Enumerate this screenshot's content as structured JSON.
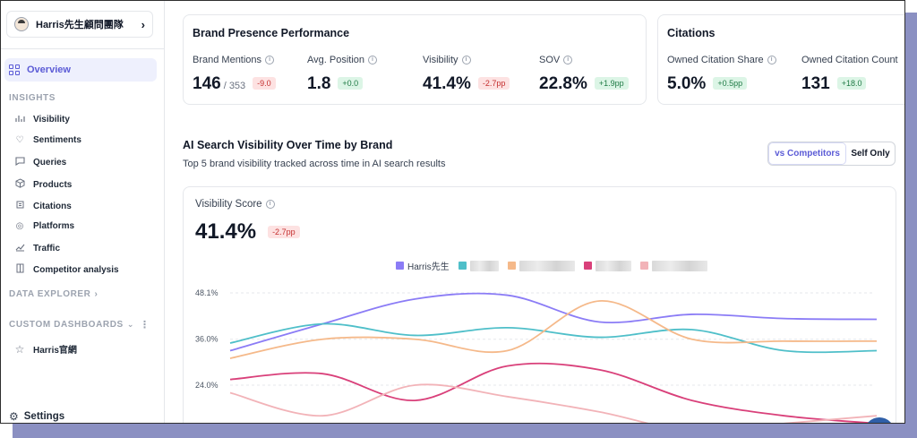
{
  "sidebar": {
    "workspace_name": "Harris先生顧問團隊",
    "overview_label": "Overview",
    "insights_label": "INSIGHTS",
    "insights_items": [
      {
        "label": "Visibility",
        "icon": "bar-chart-icon"
      },
      {
        "label": "Sentiments",
        "icon": "heart-icon"
      },
      {
        "label": "Queries",
        "icon": "chat-icon"
      },
      {
        "label": "Products",
        "icon": "box-icon"
      },
      {
        "label": "Citations",
        "icon": "citation-icon"
      },
      {
        "label": "Platforms",
        "icon": "target-icon"
      },
      {
        "label": "Traffic",
        "icon": "trend-icon"
      },
      {
        "label": "Competitor analysis",
        "icon": "compare-icon"
      }
    ],
    "data_explorer_label": "DATA EXPLORER",
    "custom_dashboards_label": "CUSTOM DASHBOARDS",
    "dashboards": [
      {
        "label": "Harris官網",
        "icon": "star-icon"
      }
    ],
    "settings_label": "Settings"
  },
  "brand_presence": {
    "title": "Brand Presence Performance",
    "metrics": [
      {
        "label": "Brand Mentions",
        "value": "146",
        "sub": "/ 353",
        "delta": "-9.0",
        "trend": "down"
      },
      {
        "label": "Avg. Position",
        "value": "1.8",
        "sub": "",
        "delta": "+0.0",
        "trend": "up"
      },
      {
        "label": "Visibility",
        "value": "41.4%",
        "sub": "",
        "delta": "-2.7pp",
        "trend": "down"
      },
      {
        "label": "SOV",
        "value": "22.8%",
        "sub": "",
        "delta": "+1.9pp",
        "trend": "up"
      }
    ]
  },
  "citations": {
    "title": "Citations",
    "metrics": [
      {
        "label": "Owned Citation Share",
        "value": "5.0%",
        "delta": "+0.5pp",
        "trend": "up"
      },
      {
        "label": "Owned Citation Count",
        "value": "131",
        "delta": "+18.0",
        "trend": "up"
      }
    ]
  },
  "visibility_section": {
    "title": "AI Search Visibility Over Time by Brand",
    "subtitle": "Top 5 brand visibility tracked across time in AI search results",
    "toggle_options": [
      "vs Competitors",
      "Self Only"
    ],
    "toggle_selected": "vs Competitors"
  },
  "chart_card": {
    "label": "Visibility Score",
    "value": "41.4%",
    "delta": "-2.7pp"
  },
  "colors": {
    "accent": "#5b5bd6",
    "negative_badge_bg": "#fde2e2",
    "positive_badge_bg": "#dcf5e6"
  },
  "chart_data": {
    "type": "line",
    "ylim": [
      18,
      50
    ],
    "yticks": [
      "48.1%",
      "36.0%",
      "24.0%"
    ],
    "ytick_values": [
      48.1,
      36.0,
      24.0
    ],
    "x": [
      0,
      1,
      2,
      3,
      4,
      5,
      6,
      7
    ],
    "series": [
      {
        "name": "Harris先生",
        "color": "#8b7cf6",
        "values": [
          33.0,
          40.0,
          46.5,
          47.5,
          40.5,
          42.5,
          41.4,
          41.2
        ]
      },
      {
        "name": "",
        "color": "#4fbfc9",
        "values": [
          35.0,
          40.0,
          37.0,
          39.0,
          36.5,
          38.5,
          33.0,
          33.0
        ]
      },
      {
        "name": "",
        "color": "#f5b98a",
        "values": [
          31.0,
          36.0,
          36.0,
          33.0,
          46.0,
          36.0,
          35.5,
          35.5
        ]
      },
      {
        "name": "",
        "color": "#d9407a",
        "values": [
          25.5,
          27.0,
          20.0,
          29.0,
          28.0,
          20.0,
          16.0,
          14.0
        ]
      },
      {
        "name": "",
        "color": "#f2b3b8",
        "values": [
          22.0,
          16.0,
          24.0,
          21.0,
          17.0,
          12.0,
          14.0,
          16.0
        ]
      }
    ]
  }
}
